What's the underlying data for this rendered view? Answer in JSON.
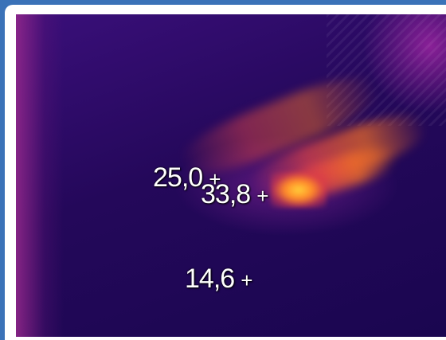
{
  "thermal_image": {
    "palette": "iron",
    "colors": {
      "cold": "#1a0650",
      "mid": "#8a2a9e",
      "warm": "#e84a5a",
      "hot": "#ffd23a"
    },
    "spots": [
      {
        "id": "spot-1",
        "value": "25,0",
        "marker": "+"
      },
      {
        "id": "spot-2",
        "value": "33,8",
        "marker": "+"
      },
      {
        "id": "spot-3",
        "value": "14,6",
        "marker": "+"
      }
    ]
  }
}
